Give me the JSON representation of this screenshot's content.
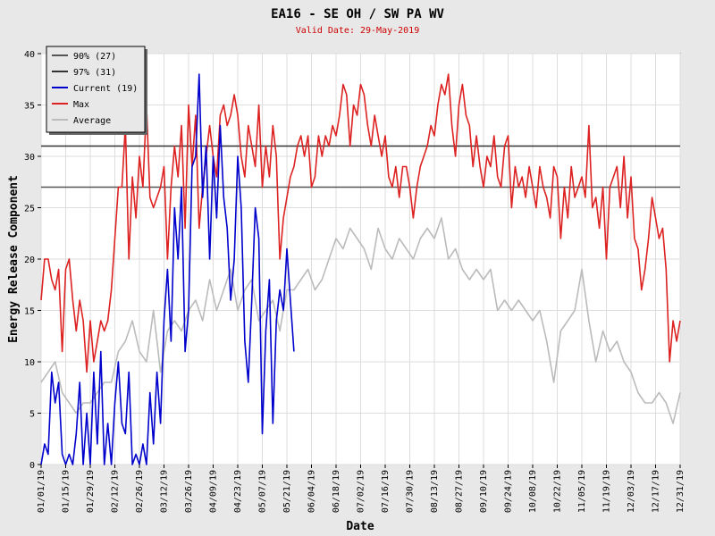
{
  "chart_data": {
    "type": "line",
    "title": "EA16 - SE OH / SW PA WV",
    "subtitle": "Valid Date: 29-May-2019",
    "xlabel": "Date",
    "ylabel": "Energy Release Component",
    "ylim": [
      0,
      40
    ],
    "y_ticks": [
      0,
      5,
      10,
      15,
      20,
      25,
      30,
      35,
      40
    ],
    "x_domain": [
      1,
      365
    ],
    "x_ticks": [
      {
        "day": 1,
        "label": "01/01/19"
      },
      {
        "day": 15,
        "label": "01/15/19"
      },
      {
        "day": 29,
        "label": "01/29/19"
      },
      {
        "day": 43,
        "label": "02/12/19"
      },
      {
        "day": 57,
        "label": "02/26/19"
      },
      {
        "day": 71,
        "label": "03/12/19"
      },
      {
        "day": 85,
        "label": "03/26/19"
      },
      {
        "day": 99,
        "label": "04/09/19"
      },
      {
        "day": 113,
        "label": "04/23/19"
      },
      {
        "day": 127,
        "label": "05/07/19"
      },
      {
        "day": 141,
        "label": "05/21/19"
      },
      {
        "day": 155,
        "label": "06/04/19"
      },
      {
        "day": 169,
        "label": "06/18/19"
      },
      {
        "day": 183,
        "label": "07/02/19"
      },
      {
        "day": 197,
        "label": "07/16/19"
      },
      {
        "day": 211,
        "label": "07/30/19"
      },
      {
        "day": 225,
        "label": "08/13/19"
      },
      {
        "day": 239,
        "label": "08/27/19"
      },
      {
        "day": 253,
        "label": "09/10/19"
      },
      {
        "day": 267,
        "label": "09/24/19"
      },
      {
        "day": 281,
        "label": "10/08/19"
      },
      {
        "day": 295,
        "label": "10/22/19"
      },
      {
        "day": 309,
        "label": "11/05/19"
      },
      {
        "day": 323,
        "label": "11/19/19"
      },
      {
        "day": 337,
        "label": "12/03/19"
      },
      {
        "day": 351,
        "label": "12/17/19"
      },
      {
        "day": 365,
        "label": "12/31/19"
      }
    ],
    "grid": true,
    "legend_position": "top-left",
    "thresholds": [
      {
        "name": "90% (27)",
        "value": 27,
        "color": "#555555"
      },
      {
        "name": "97% (31)",
        "value": 31,
        "color": "#333333"
      }
    ],
    "series": [
      {
        "name": "Current (19)",
        "color": "#0000cc",
        "x": [
          1,
          3,
          5,
          7,
          9,
          11,
          13,
          15,
          17,
          19,
          21,
          23,
          25,
          27,
          29,
          31,
          33,
          35,
          37,
          39,
          41,
          43,
          45,
          47,
          49,
          51,
          53,
          55,
          57,
          59,
          61,
          63,
          65,
          67,
          69,
          71,
          73,
          75,
          77,
          79,
          81,
          83,
          85,
          87,
          89,
          91,
          93,
          95,
          97,
          99,
          101,
          103,
          105,
          107,
          109,
          111,
          113,
          115,
          117,
          119,
          121,
          123,
          125,
          127,
          129,
          131,
          133,
          135,
          137,
          139,
          141,
          143,
          145
        ],
        "y": [
          0,
          2,
          1,
          9,
          6,
          8,
          1,
          0,
          1,
          0,
          3,
          8,
          0,
          5,
          0,
          9,
          2,
          11,
          0,
          4,
          0,
          6,
          10,
          4,
          3,
          9,
          0,
          1,
          0,
          2,
          0,
          7,
          2,
          9,
          4,
          14,
          19,
          12,
          25,
          20,
          27,
          11,
          15,
          29,
          30,
          38,
          26,
          31,
          20,
          30,
          24,
          33,
          26,
          23,
          16,
          20,
          30,
          25,
          12,
          8,
          16,
          25,
          22,
          3,
          13,
          18,
          4,
          14,
          17,
          15,
          21,
          16,
          11
        ]
      },
      {
        "name": "Max",
        "color": "#dd2222",
        "x": [
          1,
          3,
          5,
          7,
          9,
          11,
          13,
          15,
          17,
          19,
          21,
          23,
          25,
          27,
          29,
          31,
          33,
          35,
          37,
          39,
          41,
          43,
          45,
          47,
          49,
          51,
          53,
          55,
          57,
          59,
          61,
          63,
          65,
          67,
          69,
          71,
          73,
          75,
          77,
          79,
          81,
          83,
          85,
          87,
          89,
          91,
          93,
          95,
          97,
          99,
          101,
          103,
          105,
          107,
          109,
          111,
          113,
          115,
          117,
          119,
          121,
          123,
          125,
          127,
          129,
          131,
          133,
          135,
          137,
          139,
          141,
          143,
          145,
          147,
          149,
          151,
          153,
          155,
          157,
          159,
          161,
          163,
          165,
          167,
          169,
          171,
          173,
          175,
          177,
          179,
          181,
          183,
          185,
          187,
          189,
          191,
          193,
          195,
          197,
          199,
          201,
          203,
          205,
          207,
          209,
          211,
          213,
          215,
          217,
          219,
          221,
          223,
          225,
          227,
          229,
          231,
          233,
          235,
          237,
          239,
          241,
          243,
          245,
          247,
          249,
          251,
          253,
          255,
          257,
          259,
          261,
          263,
          265,
          267,
          269,
          271,
          273,
          275,
          277,
          279,
          281,
          283,
          285,
          287,
          289,
          291,
          293,
          295,
          297,
          299,
          301,
          303,
          305,
          307,
          309,
          311,
          313,
          315,
          317,
          319,
          321,
          323,
          325,
          327,
          329,
          331,
          333,
          335,
          337,
          339,
          341,
          343,
          345,
          347,
          349,
          351,
          353,
          355,
          357,
          359,
          361,
          363,
          365
        ],
        "y": [
          16,
          20,
          20,
          18,
          17,
          19,
          11,
          19,
          20,
          16,
          13,
          16,
          14,
          9,
          14,
          10,
          12,
          14,
          13,
          14,
          17,
          22,
          27,
          27,
          33,
          20,
          28,
          24,
          30,
          27,
          35,
          26,
          25,
          26,
          27,
          29,
          20,
          27,
          31,
          28,
          33,
          23,
          35,
          29,
          34,
          23,
          27,
          30,
          33,
          30,
          28,
          34,
          35,
          33,
          34,
          36,
          34,
          30,
          28,
          33,
          31,
          29,
          35,
          27,
          31,
          28,
          33,
          30,
          20,
          24,
          26,
          28,
          29,
          31,
          32,
          30,
          32,
          27,
          28,
          32,
          30,
          32,
          31,
          33,
          32,
          34,
          37,
          36,
          31,
          35,
          34,
          37,
          36,
          33,
          31,
          34,
          32,
          30,
          32,
          28,
          27,
          29,
          26,
          29,
          29,
          27,
          24,
          27,
          29,
          30,
          31,
          33,
          32,
          35,
          37,
          36,
          38,
          33,
          30,
          35,
          37,
          34,
          33,
          29,
          32,
          29,
          27,
          30,
          29,
          32,
          28,
          27,
          31,
          32,
          25,
          29,
          27,
          28,
          26,
          29,
          27,
          25,
          29,
          27,
          26,
          24,
          29,
          28,
          22,
          27,
          24,
          29,
          26,
          27,
          28,
          26,
          33,
          25,
          26,
          23,
          27,
          20,
          27,
          28,
          29,
          25,
          30,
          24,
          28,
          22,
          21,
          17,
          19,
          22,
          26,
          24,
          22,
          23,
          19,
          10,
          14,
          12,
          14
        ]
      },
      {
        "name": "Average",
        "color": "#bbbbbb",
        "x": [
          1,
          5,
          9,
          13,
          17,
          21,
          25,
          29,
          33,
          37,
          41,
          45,
          49,
          53,
          57,
          61,
          65,
          69,
          73,
          77,
          81,
          85,
          89,
          93,
          97,
          101,
          105,
          109,
          113,
          117,
          121,
          125,
          129,
          133,
          137,
          141,
          145,
          149,
          153,
          157,
          161,
          165,
          169,
          173,
          177,
          181,
          185,
          189,
          193,
          197,
          201,
          205,
          209,
          213,
          217,
          221,
          225,
          229,
          233,
          237,
          241,
          245,
          249,
          253,
          257,
          261,
          265,
          269,
          273,
          277,
          281,
          285,
          289,
          293,
          297,
          301,
          305,
          309,
          313,
          317,
          321,
          325,
          329,
          333,
          337,
          341,
          345,
          349,
          353,
          357,
          361,
          365
        ],
        "y": [
          8,
          9,
          10,
          7,
          6,
          5,
          6,
          6,
          7,
          8,
          8,
          11,
          12,
          14,
          11,
          10,
          15,
          9,
          13,
          14,
          13,
          15,
          16,
          14,
          18,
          15,
          17,
          19,
          15,
          17,
          18,
          14,
          15,
          16,
          13,
          17,
          17,
          18,
          19,
          17,
          18,
          20,
          22,
          21,
          23,
          22,
          21,
          19,
          23,
          21,
          20,
          22,
          21,
          20,
          22,
          23,
          22,
          24,
          20,
          21,
          19,
          18,
          19,
          18,
          19,
          15,
          16,
          15,
          16,
          15,
          14,
          15,
          12,
          8,
          13,
          14,
          15,
          19,
          14,
          10,
          13,
          11,
          12,
          10,
          9,
          7,
          6,
          6,
          7,
          6,
          4,
          7
        ]
      }
    ]
  }
}
